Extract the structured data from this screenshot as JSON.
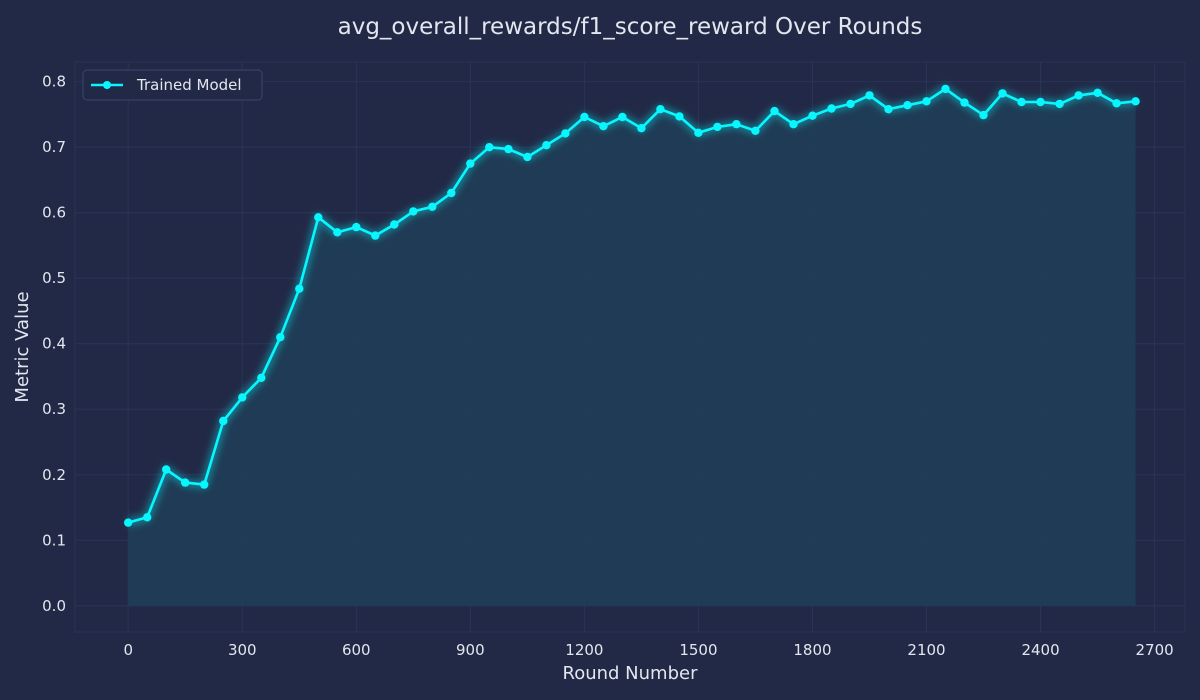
{
  "chart_data": {
    "type": "line",
    "title": "avg_overall_rewards/f1_score_reward Over Rounds",
    "xlabel": "Round Number",
    "ylabel": "Metric Value",
    "xlim": [
      -140,
      2780
    ],
    "ylim": [
      -0.04,
      0.83
    ],
    "xticks": [
      0,
      300,
      600,
      900,
      1200,
      1500,
      1800,
      2100,
      2400,
      2700
    ],
    "yticks": [
      0.0,
      0.1,
      0.2,
      0.3,
      0.4,
      0.5,
      0.6,
      0.7,
      0.8
    ],
    "ytick_labels": [
      "0.0",
      "0.1",
      "0.2",
      "0.3",
      "0.4",
      "0.5",
      "0.6",
      "0.7",
      "0.8"
    ],
    "grid": true,
    "legend_position": "top-left",
    "colors": {
      "background": "#212946",
      "line": "#08F7FE",
      "fill": "#1f3d57",
      "grid": "#2A3459",
      "text": "#e3e6ee"
    },
    "series": [
      {
        "name": "Trained Model",
        "x": [
          0,
          50,
          100,
          150,
          200,
          250,
          300,
          350,
          400,
          450,
          500,
          550,
          600,
          650,
          700,
          750,
          800,
          850,
          900,
          950,
          1000,
          1050,
          1100,
          1150,
          1200,
          1250,
          1300,
          1350,
          1400,
          1450,
          1500,
          1550,
          1600,
          1650,
          1700,
          1750,
          1800,
          1850,
          1900,
          1950,
          2000,
          2050,
          2100,
          2150,
          2200,
          2250,
          2300,
          2350,
          2400,
          2450,
          2500,
          2550,
          2600,
          2650
        ],
        "values": [
          0.127,
          0.135,
          0.208,
          0.188,
          0.185,
          0.282,
          0.318,
          0.348,
          0.41,
          0.484,
          0.593,
          0.57,
          0.578,
          0.565,
          0.582,
          0.602,
          0.609,
          0.63,
          0.675,
          0.7,
          0.697,
          0.685,
          0.703,
          0.721,
          0.746,
          0.732,
          0.746,
          0.729,
          0.758,
          0.747,
          0.722,
          0.731,
          0.735,
          0.725,
          0.755,
          0.735,
          0.748,
          0.759,
          0.766,
          0.779,
          0.758,
          0.764,
          0.77,
          0.789,
          0.768,
          0.749,
          0.782,
          0.769,
          0.769,
          0.766,
          0.779,
          0.783,
          0.767,
          0.77
        ]
      }
    ]
  }
}
